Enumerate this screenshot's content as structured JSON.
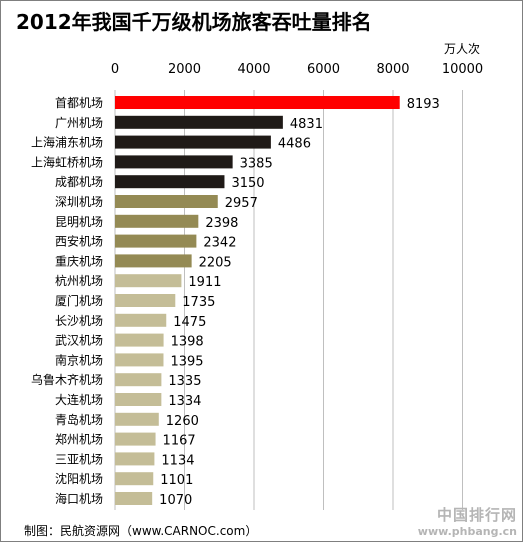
{
  "chart_data": {
    "type": "bar",
    "orientation": "horizontal",
    "title": "2012年我国千万级机场旅客吞吐量排名",
    "unit": "万人次",
    "xlim": [
      0,
      10000
    ],
    "xticks": [
      0,
      2000,
      4000,
      6000,
      8000,
      10000
    ],
    "grid": true,
    "categories": [
      "首都机场",
      "广州机场",
      "上海浦东机场",
      "上海虹桥机场",
      "成都机场",
      "深圳机场",
      "昆明机场",
      "西安机场",
      "重庆机场",
      "杭州机场",
      "厦门机场",
      "长沙机场",
      "武汉机场",
      "南京机场",
      "乌鲁木齐机场",
      "大连机场",
      "青岛机场",
      "郑州机场",
      "三亚机场",
      "沈阳机场",
      "海口机场"
    ],
    "values": [
      8193,
      4831,
      4486,
      3385,
      3150,
      2957,
      2398,
      2342,
      2205,
      1911,
      1735,
      1475,
      1398,
      1395,
      1335,
      1334,
      1260,
      1167,
      1134,
      1101,
      1070
    ],
    "colors": [
      "#ff0000",
      "#1f1a17",
      "#1f1a17",
      "#1f1a17",
      "#1f1a17",
      "#948a54",
      "#948a54",
      "#948a54",
      "#948a54",
      "#c4bd97",
      "#c4bd97",
      "#c4bd97",
      "#c4bd97",
      "#c4bd97",
      "#c4bd97",
      "#c4bd97",
      "#c4bd97",
      "#c4bd97",
      "#c4bd97",
      "#c4bd97",
      "#c4bd97"
    ]
  },
  "footer": "制图：民航资源网（www.CARNOC.com）",
  "watermark": {
    "main": "中国排行网",
    "url": "www.phbang.cn"
  }
}
